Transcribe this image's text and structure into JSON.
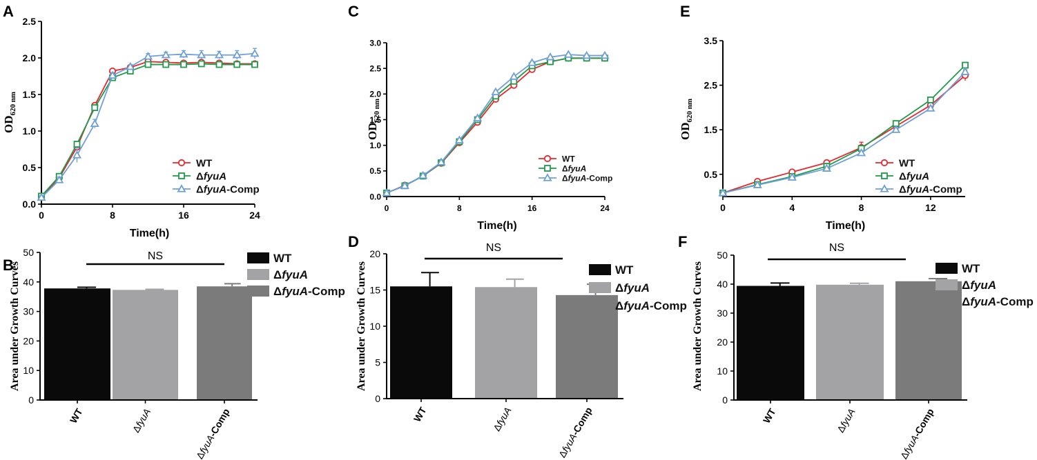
{
  "figure": {
    "colors": {
      "wt": "#e8262d",
      "fyua": "#1f9a4a",
      "comp": "#6e9fd8",
      "bar_wt": "#0a0a0a",
      "bar_fyua": "#a3a3a6",
      "bar_comp": "#7b7b7c"
    },
    "legend_labels": {
      "wt": "WT",
      "delta": "Δ",
      "gene": "fyuA",
      "comp_suffix": "-Comp"
    },
    "bar_axis_labels": [
      {
        "delta": "",
        "gene": "",
        "text": "WT"
      },
      {
        "delta": "Δ",
        "gene": "fyuA",
        "text": ""
      },
      {
        "delta": "Δ",
        "gene": "fyuA",
        "text": "-Comp"
      }
    ],
    "line_ylabel": {
      "main": "OD",
      "sub": "620 nm"
    }
  },
  "chart_data": [
    {
      "panel": "A",
      "type": "line",
      "xlabel": "Time(h)",
      "xlim": [
        0,
        24
      ],
      "xticks": [
        0,
        8,
        16,
        24
      ],
      "xtick_labels": [
        "0",
        "8",
        "16",
        "24"
      ],
      "ylim": [
        0,
        2.5
      ],
      "yticks": [
        0,
        0.5,
        1.0,
        1.5,
        2.0,
        2.5
      ],
      "ytick_labels": [
        "0.0",
        "0.5",
        "1.0",
        "1.5",
        "2.0",
        "2.5"
      ],
      "x": [
        0,
        2,
        4,
        6,
        8,
        10,
        12,
        14,
        16,
        18,
        20,
        22,
        24
      ],
      "series": [
        {
          "name": "WT",
          "key": "wt",
          "marker": "circle",
          "values": [
            0.1,
            0.36,
            0.78,
            1.35,
            1.82,
            1.87,
            1.95,
            1.94,
            1.93,
            1.94,
            1.93,
            1.92,
            1.92
          ],
          "errors": [
            0.02,
            0.02,
            0.03,
            0.03,
            0.02,
            0.02,
            0.02,
            0.02,
            0.02,
            0.02,
            0.02,
            0.02,
            0.02
          ]
        },
        {
          "name": "ΔfyuA",
          "key": "fyua",
          "marker": "square",
          "values": [
            0.11,
            0.38,
            0.82,
            1.32,
            1.73,
            1.82,
            1.91,
            1.91,
            1.91,
            1.92,
            1.91,
            1.91,
            1.91
          ],
          "errors": [
            0.02,
            0.02,
            0.03,
            0.03,
            0.03,
            0.02,
            0.02,
            0.02,
            0.02,
            0.02,
            0.02,
            0.02,
            0.02
          ]
        },
        {
          "name": "ΔfyuA-Comp",
          "key": "comp",
          "marker": "triangle",
          "values": [
            0.09,
            0.33,
            0.67,
            1.1,
            1.76,
            1.88,
            2.02,
            2.04,
            2.05,
            2.04,
            2.04,
            2.04,
            2.06
          ],
          "errors": [
            0.02,
            0.04,
            0.1,
            0.06,
            0.04,
            0.03,
            0.04,
            0.04,
            0.05,
            0.06,
            0.05,
            0.06,
            0.07
          ]
        }
      ],
      "legend_position": "lower-right"
    },
    {
      "panel": "C",
      "type": "line",
      "xlabel": "Time(h)",
      "xlim": [
        0,
        24
      ],
      "xticks": [
        0,
        8,
        16,
        24
      ],
      "xtick_labels": [
        "0",
        "8",
        "16",
        "24"
      ],
      "ylim": [
        0,
        3.0
      ],
      "yticks": [
        0,
        0.5,
        1.0,
        1.5,
        2.0,
        2.5,
        3.0
      ],
      "ytick_labels": [
        "0.0",
        "0.5",
        "1.0",
        "1.5",
        "2.0",
        "2.5",
        "3.0"
      ],
      "x": [
        0,
        2,
        4,
        6,
        8,
        10,
        12,
        14,
        16,
        18,
        20,
        22,
        24
      ],
      "series": [
        {
          "name": "WT",
          "key": "wt",
          "marker": "circle",
          "values": [
            0.07,
            0.22,
            0.4,
            0.65,
            1.05,
            1.45,
            1.9,
            2.17,
            2.48,
            2.63,
            2.7,
            2.7,
            2.7
          ],
          "errors": [
            0.01,
            0.01,
            0.01,
            0.02,
            0.02,
            0.02,
            0.03,
            0.03,
            0.03,
            0.02,
            0.02,
            0.02,
            0.02
          ]
        },
        {
          "name": "ΔfyuA",
          "key": "fyua",
          "marker": "square",
          "values": [
            0.07,
            0.21,
            0.4,
            0.66,
            1.07,
            1.5,
            1.96,
            2.25,
            2.55,
            2.63,
            2.7,
            2.7,
            2.7
          ],
          "errors": [
            0.01,
            0.01,
            0.01,
            0.02,
            0.02,
            0.02,
            0.03,
            0.03,
            0.03,
            0.02,
            0.02,
            0.02,
            0.02
          ]
        },
        {
          "name": "ΔfyuA-Comp",
          "key": "comp",
          "marker": "triangle",
          "values": [
            0.07,
            0.21,
            0.41,
            0.67,
            1.1,
            1.53,
            2.04,
            2.34,
            2.61,
            2.72,
            2.77,
            2.75,
            2.75
          ],
          "errors": [
            0.01,
            0.01,
            0.01,
            0.02,
            0.02,
            0.02,
            0.03,
            0.03,
            0.03,
            0.02,
            0.02,
            0.02,
            0.02
          ]
        }
      ],
      "legend_position": "lower-right"
    },
    {
      "panel": "E",
      "type": "line",
      "xlabel": "Time(h)",
      "xlim": [
        0,
        14
      ],
      "xticks": [
        0,
        4,
        8,
        12
      ],
      "xtick_labels": [
        "0",
        "4",
        "8",
        "12"
      ],
      "ylim": [
        0,
        3.5
      ],
      "yticks": [
        0.5,
        1.5,
        2.5,
        3.5
      ],
      "ytick_labels": [
        "0.5",
        "1.5",
        "2.5",
        "3.5"
      ],
      "x": [
        0,
        2,
        4,
        6,
        8,
        10,
        12,
        14
      ],
      "series": [
        {
          "name": "WT",
          "key": "wt",
          "marker": "circle",
          "values": [
            0.08,
            0.34,
            0.55,
            0.76,
            1.1,
            1.58,
            2.05,
            2.72
          ],
          "errors": [
            0.02,
            0.02,
            0.03,
            0.06,
            0.12,
            0.05,
            0.05,
            0.12
          ]
        },
        {
          "name": "ΔfyuA",
          "key": "fyua",
          "marker": "square",
          "values": [
            0.08,
            0.27,
            0.45,
            0.68,
            1.08,
            1.64,
            2.17,
            2.95
          ],
          "errors": [
            0.02,
            0.02,
            0.03,
            0.04,
            0.05,
            0.05,
            0.05,
            0.05
          ]
        },
        {
          "name": "ΔfyuA-Comp",
          "key": "comp",
          "marker": "triangle",
          "values": [
            0.08,
            0.26,
            0.43,
            0.63,
            0.98,
            1.5,
            1.98,
            2.8
          ],
          "errors": [
            0.02,
            0.02,
            0.03,
            0.04,
            0.05,
            0.05,
            0.05,
            0.05
          ]
        }
      ],
      "legend_position": "lower-right"
    },
    {
      "panel": "B",
      "type": "bar",
      "ylabel": "Area under Growth Curves",
      "ylim": [
        0,
        50
      ],
      "yticks": [
        0,
        10,
        20,
        30,
        40,
        50
      ],
      "ytick_labels": [
        "0",
        "10",
        "20",
        "30",
        "40",
        "50"
      ],
      "categories": [
        "WT",
        "ΔfyuA",
        "ΔfyuA-Comp"
      ],
      "values": [
        37.8,
        37.3,
        38.5
      ],
      "errors": [
        0.4,
        0.2,
        0.9
      ],
      "annotation": "NS",
      "legend_position": "right"
    },
    {
      "panel": "D",
      "type": "bar",
      "ylabel": "Area under Growth Curves",
      "ylim": [
        0,
        20
      ],
      "yticks": [
        0,
        5,
        10,
        15,
        20
      ],
      "ytick_labels": [
        "0",
        "5",
        "10",
        "15",
        "20"
      ],
      "categories": [
        "WT",
        "ΔfyuA",
        "ΔfyuA-Comp"
      ],
      "values": [
        15.5,
        15.4,
        14.3
      ],
      "errors": [
        1.9,
        1.1,
        1.5
      ],
      "annotation": "NS",
      "legend_position": "right"
    },
    {
      "panel": "F",
      "type": "bar",
      "ylabel": "Area under Growth Curves",
      "ylim": [
        0,
        50
      ],
      "yticks": [
        0,
        10,
        20,
        30,
        40,
        50
      ],
      "ytick_labels": [
        "0",
        "10",
        "20",
        "30",
        "40",
        "50"
      ],
      "categories": [
        "WT",
        "ΔfyuA",
        "ΔfyuA-Comp"
      ],
      "values": [
        39.4,
        39.8,
        41.0
      ],
      "errors": [
        1.0,
        0.5,
        0.9
      ],
      "annotation": "NS",
      "legend_position": "right"
    }
  ]
}
